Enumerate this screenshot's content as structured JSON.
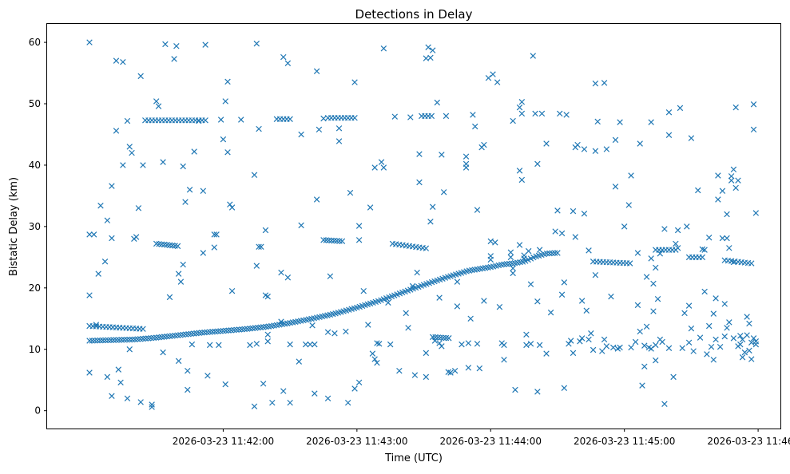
{
  "chart_data": {
    "type": "scatter",
    "title": "Detections in Delay",
    "xlabel": "Time (UTC)",
    "ylabel": "Bistatic Delay (km)",
    "marker": "x",
    "color": "#1f77b4",
    "x_unit": "seconds since 2026-03-23 11:41:00 UTC",
    "xlim": [
      -19,
      310
    ],
    "ylim": [
      -2.9,
      63.0
    ],
    "x_ticks": [
      {
        "value": 60,
        "label": "2026-03-23 11:42:00"
      },
      {
        "value": 120,
        "label": "2026-03-23 11:43:00"
      },
      {
        "value": 180,
        "label": "2026-03-23 11:44:00"
      },
      {
        "value": 240,
        "label": "2026-03-23 11:45:00"
      },
      {
        "value": 300,
        "label": "2026-03-23 11:46:00"
      }
    ],
    "y_ticks": [
      {
        "value": 0,
        "label": "0"
      },
      {
        "value": 10,
        "label": "10"
      },
      {
        "value": 20,
        "label": "20"
      },
      {
        "value": 30,
        "label": "30"
      },
      {
        "value": 40,
        "label": "40"
      },
      {
        "value": 50,
        "label": "50"
      },
      {
        "value": 60,
        "label": "60"
      }
    ],
    "tracks": [
      {
        "name": "main-track",
        "t": [
          0,
          10,
          20,
          30,
          40,
          50,
          60,
          70,
          80,
          90,
          100,
          110,
          120,
          130,
          140,
          150,
          160,
          170,
          180,
          185,
          190,
          195,
          200,
          205,
          210
        ],
        "y": [
          11.4,
          11.5,
          11.6,
          11.9,
          12.3,
          12.7,
          13.0,
          13.3,
          13.7,
          14.3,
          15.0,
          15.8,
          16.8,
          17.9,
          19.2,
          20.5,
          21.7,
          22.8,
          23.4,
          23.8,
          24.0,
          24.3,
          25.1,
          25.6,
          25.7
        ],
        "step": 1.2
      },
      {
        "name": "track-47a",
        "t": [
          25,
          52
        ],
        "y": [
          47.3,
          47.3
        ],
        "step": 1.5
      },
      {
        "name": "track-47b",
        "t": [
          84,
          90
        ],
        "y": [
          47.5,
          47.5
        ],
        "step": 1.5
      },
      {
        "name": "track-47c",
        "t": [
          107,
          119
        ],
        "y": [
          47.7,
          47.7
        ],
        "step": 1.5
      },
      {
        "name": "track-47d",
        "t": [
          149,
          154
        ],
        "y": [
          48.0,
          48.0
        ],
        "step": 1.5
      },
      {
        "name": "track-27",
        "t": [
          30,
          40
        ],
        "y": [
          27.2,
          26.8
        ],
        "step": 1.2
      },
      {
        "name": "track-27b",
        "t": [
          105,
          114
        ],
        "y": [
          27.8,
          27.6
        ],
        "step": 1.2
      },
      {
        "name": "track-27c",
        "t": [
          136,
          152
        ],
        "y": [
          27.2,
          26.4
        ],
        "step": 1.5
      },
      {
        "name": "track-13",
        "t": [
          0,
          25
        ],
        "y": [
          13.8,
          13.3
        ],
        "step": 1.5
      },
      {
        "name": "track-12",
        "t": [
          154,
          162
        ],
        "y": [
          12.0,
          11.8
        ],
        "step": 1.2
      },
      {
        "name": "track-24",
        "t": [
          226,
          243
        ],
        "y": [
          24.3,
          24.0
        ],
        "step": 1.5
      },
      {
        "name": "track-26",
        "t": [
          254,
          264
        ],
        "y": [
          26.2,
          26.2
        ],
        "step": 1.5
      },
      {
        "name": "track-25",
        "t": [
          269,
          276
        ],
        "y": [
          25.0,
          25.0
        ],
        "step": 1.5
      },
      {
        "name": "track-24b",
        "t": [
          285,
          297
        ],
        "y": [
          24.5,
          24.0
        ],
        "step": 1.5
      }
    ],
    "points": [
      [
        0,
        60.0
      ],
      [
        0,
        28.7
      ],
      [
        0,
        18.8
      ],
      [
        0,
        6.2
      ],
      [
        2,
        28.7
      ],
      [
        3,
        14.0
      ],
      [
        4,
        22.3
      ],
      [
        5,
        33.4
      ],
      [
        7,
        24.3
      ],
      [
        8,
        31.0
      ],
      [
        8,
        5.5
      ],
      [
        10,
        2.4
      ],
      [
        10,
        36.6
      ],
      [
        10,
        28.1
      ],
      [
        12,
        45.6
      ],
      [
        12,
        57.0
      ],
      [
        13,
        6.7
      ],
      [
        14,
        4.6
      ],
      [
        15,
        40.0
      ],
      [
        15,
        56.8
      ],
      [
        17,
        47.2
      ],
      [
        17,
        2.0
      ],
      [
        18,
        43.0
      ],
      [
        18,
        10.0
      ],
      [
        19,
        42.0
      ],
      [
        20,
        28.0
      ],
      [
        21,
        28.3
      ],
      [
        22,
        33.0
      ],
      [
        23,
        54.5
      ],
      [
        23,
        1.4
      ],
      [
        24,
        40.0
      ],
      [
        28,
        1.0
      ],
      [
        28,
        0.6
      ],
      [
        30,
        50.4
      ],
      [
        31,
        49.6
      ],
      [
        33,
        40.5
      ],
      [
        33,
        9.5
      ],
      [
        34,
        59.7
      ],
      [
        36,
        18.5
      ],
      [
        38,
        57.3
      ],
      [
        39,
        59.4
      ],
      [
        40,
        8.1
      ],
      [
        40,
        22.3
      ],
      [
        41,
        21.0
      ],
      [
        42,
        39.8
      ],
      [
        42,
        23.8
      ],
      [
        43,
        34.0
      ],
      [
        44,
        3.4
      ],
      [
        44,
        6.5
      ],
      [
        45,
        36.0
      ],
      [
        46,
        10.8
      ],
      [
        47,
        42.2
      ],
      [
        49,
        47.2
      ],
      [
        51,
        25.7
      ],
      [
        51,
        35.8
      ],
      [
        52,
        59.6
      ],
      [
        53,
        5.7
      ],
      [
        54,
        10.7
      ],
      [
        56,
        26.6
      ],
      [
        56,
        28.7
      ],
      [
        57,
        28.7
      ],
      [
        58,
        10.7
      ],
      [
        59,
        47.4
      ],
      [
        60,
        44.2
      ],
      [
        61,
        50.4
      ],
      [
        61,
        4.3
      ],
      [
        62,
        42.1
      ],
      [
        62,
        53.6
      ],
      [
        63,
        33.6
      ],
      [
        64,
        33.1
      ],
      [
        64,
        19.5
      ],
      [
        68,
        47.4
      ],
      [
        72,
        10.7
      ],
      [
        74,
        38.4
      ],
      [
        74,
        0.7
      ],
      [
        75,
        10.9
      ],
      [
        75,
        59.8
      ],
      [
        75,
        23.6
      ],
      [
        76,
        26.7
      ],
      [
        76,
        45.9
      ],
      [
        77,
        26.7
      ],
      [
        78,
        4.4
      ],
      [
        79,
        29.4
      ],
      [
        79,
        18.8
      ],
      [
        80,
        18.6
      ],
      [
        80,
        12.4
      ],
      [
        80,
        11.3
      ],
      [
        82,
        1.3
      ],
      [
        86,
        22.5
      ],
      [
        86,
        14.5
      ],
      [
        87,
        57.6
      ],
      [
        87,
        3.2
      ],
      [
        89,
        56.6
      ],
      [
        89,
        21.7
      ],
      [
        90,
        10.8
      ],
      [
        90,
        1.3
      ],
      [
        94,
        8.0
      ],
      [
        95,
        30.2
      ],
      [
        95,
        45.0
      ],
      [
        97,
        10.8
      ],
      [
        99,
        10.8
      ],
      [
        100,
        13.9
      ],
      [
        101,
        10.8
      ],
      [
        101,
        2.8
      ],
      [
        102,
        34.4
      ],
      [
        102,
        55.3
      ],
      [
        103,
        45.8
      ],
      [
        105,
        47.6
      ],
      [
        107,
        2.0
      ],
      [
        107,
        12.8
      ],
      [
        108,
        21.9
      ],
      [
        110,
        12.6
      ],
      [
        112,
        46.0
      ],
      [
        112,
        43.9
      ],
      [
        115,
        12.9
      ],
      [
        116,
        1.3
      ],
      [
        117,
        35.5
      ],
      [
        119,
        53.5
      ],
      [
        119,
        3.6
      ],
      [
        121,
        30.1
      ],
      [
        121,
        27.8
      ],
      [
        121,
        4.6
      ],
      [
        123,
        19.5
      ],
      [
        125,
        14.0
      ],
      [
        126,
        33.1
      ],
      [
        127,
        9.3
      ],
      [
        128,
        39.6
      ],
      [
        128,
        8.4
      ],
      [
        129,
        7.8
      ],
      [
        129,
        11.0
      ],
      [
        130,
        10.9
      ],
      [
        131,
        40.5
      ],
      [
        132,
        59.0
      ],
      [
        132,
        39.6
      ],
      [
        134,
        17.6
      ],
      [
        135,
        10.8
      ],
      [
        137,
        47.9
      ],
      [
        139,
        6.5
      ],
      [
        142,
        15.9
      ],
      [
        143,
        13.5
      ],
      [
        144,
        47.8
      ],
      [
        145,
        20.3
      ],
      [
        146,
        5.8
      ],
      [
        147,
        22.5
      ],
      [
        148,
        41.8
      ],
      [
        148,
        37.2
      ],
      [
        151,
        9.4
      ],
      [
        151,
        5.5
      ],
      [
        151,
        57.4
      ],
      [
        152,
        59.2
      ],
      [
        153,
        30.8
      ],
      [
        153,
        57.5
      ],
      [
        154,
        58.7
      ],
      [
        154,
        33.2
      ],
      [
        155,
        11.4
      ],
      [
        156,
        50.2
      ],
      [
        157,
        18.4
      ],
      [
        157,
        11.0
      ],
      [
        158,
        10.5
      ],
      [
        158,
        41.7
      ],
      [
        159,
        35.6
      ],
      [
        160,
        48.0
      ],
      [
        161,
        6.3
      ],
      [
        162,
        6.2
      ],
      [
        164,
        6.5
      ],
      [
        165,
        17.0
      ],
      [
        165,
        21.0
      ],
      [
        167,
        10.8
      ],
      [
        169,
        40.2
      ],
      [
        169,
        39.6
      ],
      [
        169,
        41.4
      ],
      [
        170,
        11.0
      ],
      [
        170,
        7.0
      ],
      [
        171,
        15.0
      ],
      [
        172,
        48.2
      ],
      [
        173,
        46.3
      ],
      [
        174,
        32.7
      ],
      [
        174,
        10.9
      ],
      [
        175,
        6.9
      ],
      [
        176,
        42.9
      ],
      [
        177,
        43.3
      ],
      [
        177,
        17.9
      ],
      [
        179,
        54.2
      ],
      [
        180,
        27.6
      ],
      [
        180,
        24.6
      ],
      [
        180,
        25.2
      ],
      [
        181,
        54.8
      ],
      [
        182,
        27.4
      ],
      [
        183,
        53.5
      ],
      [
        184,
        16.9
      ],
      [
        185,
        11.0
      ],
      [
        186,
        10.7
      ],
      [
        186,
        8.3
      ],
      [
        189,
        25.0
      ],
      [
        189,
        25.8
      ],
      [
        190,
        23.2
      ],
      [
        190,
        22.4
      ],
      [
        190,
        47.2
      ],
      [
        191,
        3.4
      ],
      [
        193,
        27.0
      ],
      [
        193,
        39.1
      ],
      [
        193,
        49.4
      ],
      [
        194,
        50.3
      ],
      [
        194,
        48.4
      ],
      [
        194,
        37.6
      ],
      [
        195,
        25.3
      ],
      [
        195,
        24.8
      ],
      [
        196,
        10.7
      ],
      [
        196,
        12.4
      ],
      [
        197,
        26.0
      ],
      [
        198,
        20.6
      ],
      [
        198,
        10.9
      ],
      [
        199,
        57.8
      ],
      [
        200,
        48.4
      ],
      [
        201,
        40.2
      ],
      [
        201,
        3.1
      ],
      [
        201,
        17.8
      ],
      [
        202,
        26.2
      ],
      [
        202,
        10.7
      ],
      [
        203,
        48.4
      ],
      [
        205,
        43.5
      ],
      [
        205,
        9.3
      ],
      [
        207,
        16.0
      ],
      [
        209,
        29.2
      ],
      [
        210,
        32.6
      ],
      [
        211,
        48.4
      ],
      [
        212,
        18.9
      ],
      [
        212,
        28.9
      ],
      [
        213,
        20.9
      ],
      [
        213,
        3.7
      ],
      [
        214,
        48.2
      ],
      [
        215,
        10.9
      ],
      [
        216,
        11.4
      ],
      [
        217,
        9.4
      ],
      [
        217,
        32.5
      ],
      [
        218,
        42.9
      ],
      [
        218,
        28.3
      ],
      [
        219,
        43.3
      ],
      [
        220,
        11.3
      ],
      [
        221,
        11.8
      ],
      [
        221,
        17.9
      ],
      [
        222,
        32.1
      ],
      [
        222,
        42.6
      ],
      [
        223,
        16.3
      ],
      [
        224,
        26.1
      ],
      [
        224,
        11.6
      ],
      [
        225,
        12.6
      ],
      [
        226,
        9.9
      ],
      [
        227,
        42.3
      ],
      [
        227,
        22.1
      ],
      [
        227,
        53.3
      ],
      [
        228,
        47.1
      ],
      [
        230,
        9.7
      ],
      [
        231,
        11.6
      ],
      [
        231,
        53.4
      ],
      [
        232,
        42.6
      ],
      [
        232,
        10.5
      ],
      [
        234,
        18.6
      ],
      [
        235,
        10.3
      ],
      [
        236,
        44.1
      ],
      [
        236,
        36.5
      ],
      [
        237,
        10.1
      ],
      [
        238,
        47.0
      ],
      [
        238,
        10.3
      ],
      [
        240,
        30.0
      ],
      [
        242,
        33.5
      ],
      [
        243,
        38.3
      ],
      [
        243,
        10.3
      ],
      [
        245,
        11.2
      ],
      [
        246,
        17.2
      ],
      [
        246,
        25.7
      ],
      [
        247,
        43.5
      ],
      [
        247,
        12.9
      ],
      [
        248,
        4.1
      ],
      [
        249,
        7.2
      ],
      [
        249,
        10.6
      ],
      [
        250,
        13.7
      ],
      [
        250,
        21.8
      ],
      [
        251,
        10.3
      ],
      [
        252,
        10.1
      ],
      [
        252,
        24.8
      ],
      [
        252,
        47.0
      ],
      [
        253,
        20.7
      ],
      [
        253,
        16.2
      ],
      [
        254,
        8.2
      ],
      [
        254,
        10.7
      ],
      [
        254,
        23.3
      ],
      [
        255,
        18.2
      ],
      [
        256,
        25.6
      ],
      [
        256,
        11.6
      ],
      [
        257,
        11.2
      ],
      [
        258,
        29.6
      ],
      [
        258,
        1.1
      ],
      [
        260,
        10.2
      ],
      [
        260,
        48.6
      ],
      [
        260,
        44.9
      ],
      [
        262,
        5.5
      ],
      [
        263,
        27.2
      ],
      [
        264,
        26.5
      ],
      [
        264,
        29.4
      ],
      [
        265,
        49.3
      ],
      [
        266,
        10.2
      ],
      [
        267,
        15.9
      ],
      [
        268,
        30.0
      ],
      [
        269,
        17.1
      ],
      [
        269,
        11.1
      ],
      [
        270,
        44.4
      ],
      [
        270,
        13.4
      ],
      [
        271,
        9.7
      ],
      [
        273,
        35.9
      ],
      [
        274,
        11.9
      ],
      [
        275,
        26.3
      ],
      [
        276,
        26.2
      ],
      [
        276,
        19.4
      ],
      [
        277,
        9.2
      ],
      [
        278,
        28.2
      ],
      [
        278,
        13.8
      ],
      [
        279,
        10.4
      ],
      [
        280,
        15.8
      ],
      [
        280,
        8.3
      ],
      [
        281,
        11.6
      ],
      [
        281,
        18.3
      ],
      [
        282,
        34.4
      ],
      [
        282,
        38.3
      ],
      [
        283,
        10.4
      ],
      [
        284,
        28.1
      ],
      [
        284,
        35.8
      ],
      [
        285,
        17.4
      ],
      [
        285,
        12.1
      ],
      [
        286,
        13.5
      ],
      [
        286,
        32.0
      ],
      [
        286,
        28.1
      ],
      [
        287,
        26.5
      ],
      [
        287,
        14.4
      ],
      [
        288,
        37.5
      ],
      [
        288,
        38.2
      ],
      [
        289,
        24.2
      ],
      [
        289,
        39.3
      ],
      [
        289,
        11.8
      ],
      [
        290,
        49.4
      ],
      [
        290,
        36.3
      ],
      [
        291,
        37.5
      ],
      [
        291,
        10.5
      ],
      [
        292,
        10.8
      ],
      [
        292,
        12.2
      ],
      [
        293,
        8.7
      ],
      [
        293,
        11.6
      ],
      [
        294,
        9.5
      ],
      [
        295,
        12.3
      ],
      [
        295,
        15.3
      ],
      [
        296,
        14.2
      ],
      [
        296,
        9.8
      ],
      [
        297,
        8.4
      ],
      [
        297,
        11.1
      ],
      [
        298,
        11.8
      ],
      [
        298,
        45.8
      ],
      [
        298,
        49.9
      ],
      [
        299,
        32.2
      ],
      [
        299,
        11.3
      ],
      [
        299,
        10.8
      ]
    ]
  }
}
